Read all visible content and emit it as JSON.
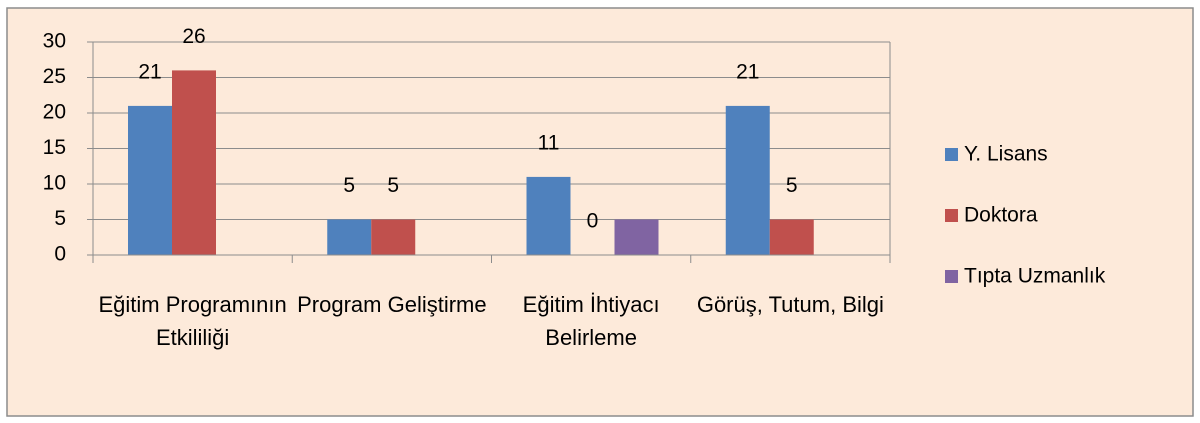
{
  "chart_data": {
    "type": "bar",
    "categories": [
      "Eğitim Programının Etkililiği",
      "Program Geliştirme",
      "Eğitim İhtiyacı Belirleme",
      "Görüş, Tutum, Bilgi"
    ],
    "series": [
      {
        "name": "Y. Lisans",
        "color": "#4f81bd",
        "values": [
          21,
          5,
          11,
          21
        ],
        "data_labels": true
      },
      {
        "name": "Doktora",
        "color": "#c0504d",
        "values": [
          26,
          5,
          0,
          5
        ],
        "data_labels": true
      },
      {
        "name": "Tıpta Uzmanlık",
        "color": "#8064a2",
        "values": [
          null,
          null,
          5,
          null
        ],
        "data_labels": false
      }
    ],
    "ylim": [
      0,
      30
    ],
    "yticks": [
      0,
      5,
      10,
      15,
      20,
      25,
      30
    ],
    "grid": true,
    "legend": "right"
  }
}
